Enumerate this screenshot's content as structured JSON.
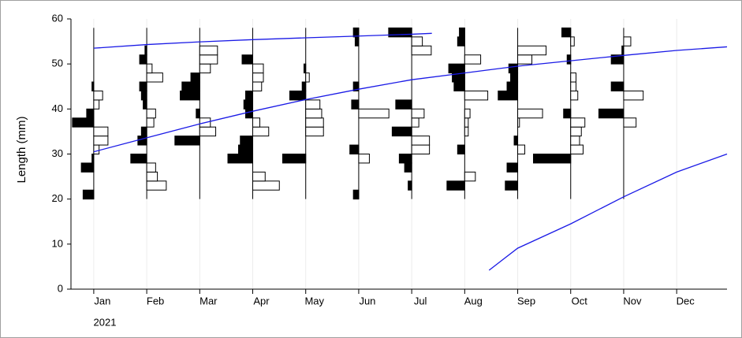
{
  "chart_data": {
    "type": "length-frequency",
    "ylabel": "Length (mm)",
    "year": "2021",
    "categories": [
      "Jan",
      "Feb",
      "Mar",
      "Apr",
      "May",
      "Jun",
      "Jul",
      "Aug",
      "Sep",
      "Oct",
      "Nov",
      "Dec"
    ],
    "xlim": [
      -0.43,
      11.95
    ],
    "ylim": [
      0,
      60
    ],
    "yticks": [
      0,
      10,
      20,
      30,
      40,
      50,
      60
    ],
    "grid": true,
    "length_classes": [
      21,
      23,
      25,
      27,
      29,
      31,
      33,
      35,
      37,
      39,
      41,
      43,
      45,
      47,
      49,
      51,
      53,
      55,
      57
    ],
    "scores": [
      [
        -0.3,
        null,
        null,
        -0.35,
        -0.05,
        0.15,
        0.4,
        0.4,
        -0.6,
        -0.2,
        0.15,
        0.25,
        -0.05,
        null,
        null,
        null,
        null,
        null,
        null
      ],
      [
        null,
        0.55,
        0.3,
        0.25,
        -0.45,
        null,
        -0.25,
        -0.15,
        0.2,
        0.25,
        -0.1,
        -0.15,
        -0.2,
        0.45,
        0.15,
        -0.2,
        -0.05,
        null,
        null
      ],
      [
        null,
        null,
        null,
        null,
        null,
        null,
        -0.7,
        0.45,
        0.3,
        -0.1,
        null,
        -0.55,
        -0.5,
        -0.25,
        0.3,
        0.5,
        0.5,
        null,
        null
      ],
      [
        null,
        0.75,
        0.35,
        null,
        -0.7,
        -0.4,
        -0.35,
        0.45,
        0.2,
        -0.2,
        -0.25,
        -0.2,
        0.25,
        0.3,
        0.3,
        -0.3,
        null,
        null,
        null
      ],
      [
        null,
        null,
        null,
        null,
        -0.65,
        null,
        null,
        0.5,
        0.5,
        0.45,
        0.4,
        -0.45,
        -0.1,
        0.1,
        -0.05,
        null,
        null,
        null,
        null
      ],
      [
        -0.15,
        null,
        null,
        null,
        0.3,
        -0.25,
        null,
        null,
        null,
        0.85,
        -0.2,
        null,
        -0.15,
        null,
        null,
        null,
        null,
        -0.1,
        -0.15
      ],
      [
        null,
        -0.1,
        null,
        -0.2,
        -0.35,
        0.5,
        0.5,
        -0.55,
        0.2,
        0.35,
        -0.45,
        null,
        null,
        null,
        null,
        null,
        0.55,
        0.3,
        -0.65
      ],
      [
        null,
        -0.5,
        0.3,
        null,
        null,
        -0.2,
        null,
        0.1,
        0.1,
        0.15,
        null,
        0.65,
        -0.3,
        -0.35,
        -0.45,
        0.45,
        null,
        -0.2,
        -0.15
      ],
      [
        null,
        -0.35,
        null,
        -0.3,
        null,
        0.2,
        -0.1,
        null,
        0.05,
        0.7,
        null,
        -0.55,
        -0.3,
        -0.2,
        -0.25,
        0.4,
        0.8,
        null,
        null
      ],
      [
        null,
        null,
        null,
        null,
        -1.05,
        0.35,
        0.25,
        0.3,
        0.4,
        -0.2,
        null,
        0.2,
        0.15,
        0.15,
        null,
        -0.1,
        null,
        0.1,
        -0.25
      ],
      [
        null,
        null,
        null,
        null,
        null,
        null,
        null,
        null,
        0.35,
        -0.7,
        null,
        0.55,
        -0.35,
        null,
        null,
        -0.35,
        -0.05,
        0.2,
        null
      ]
    ],
    "curves": [
      {
        "color": "#1a1ae6",
        "x": [
          0,
          1,
          2,
          3,
          4,
          5,
          6,
          6.38
        ],
        "values": [
          53.5,
          54.3,
          54.9,
          55.4,
          55.8,
          56.2,
          56.6,
          56.8
        ]
      },
      {
        "color": "#1a1ae6",
        "x": [
          0,
          1,
          2,
          3,
          4,
          5,
          6,
          7,
          8,
          9,
          10,
          11,
          11.95
        ],
        "values": [
          30.5,
          33.6,
          36.7,
          39.5,
          42.1,
          44.4,
          46.5,
          48,
          49.5,
          50.7,
          51.9,
          53,
          53.8
        ]
      },
      {
        "color": "#1a1ae6",
        "x": [
          7.46,
          8,
          9,
          10,
          11,
          11.95
        ],
        "values": [
          4.2,
          9.1,
          14.5,
          20.5,
          26,
          30
        ]
      }
    ]
  }
}
